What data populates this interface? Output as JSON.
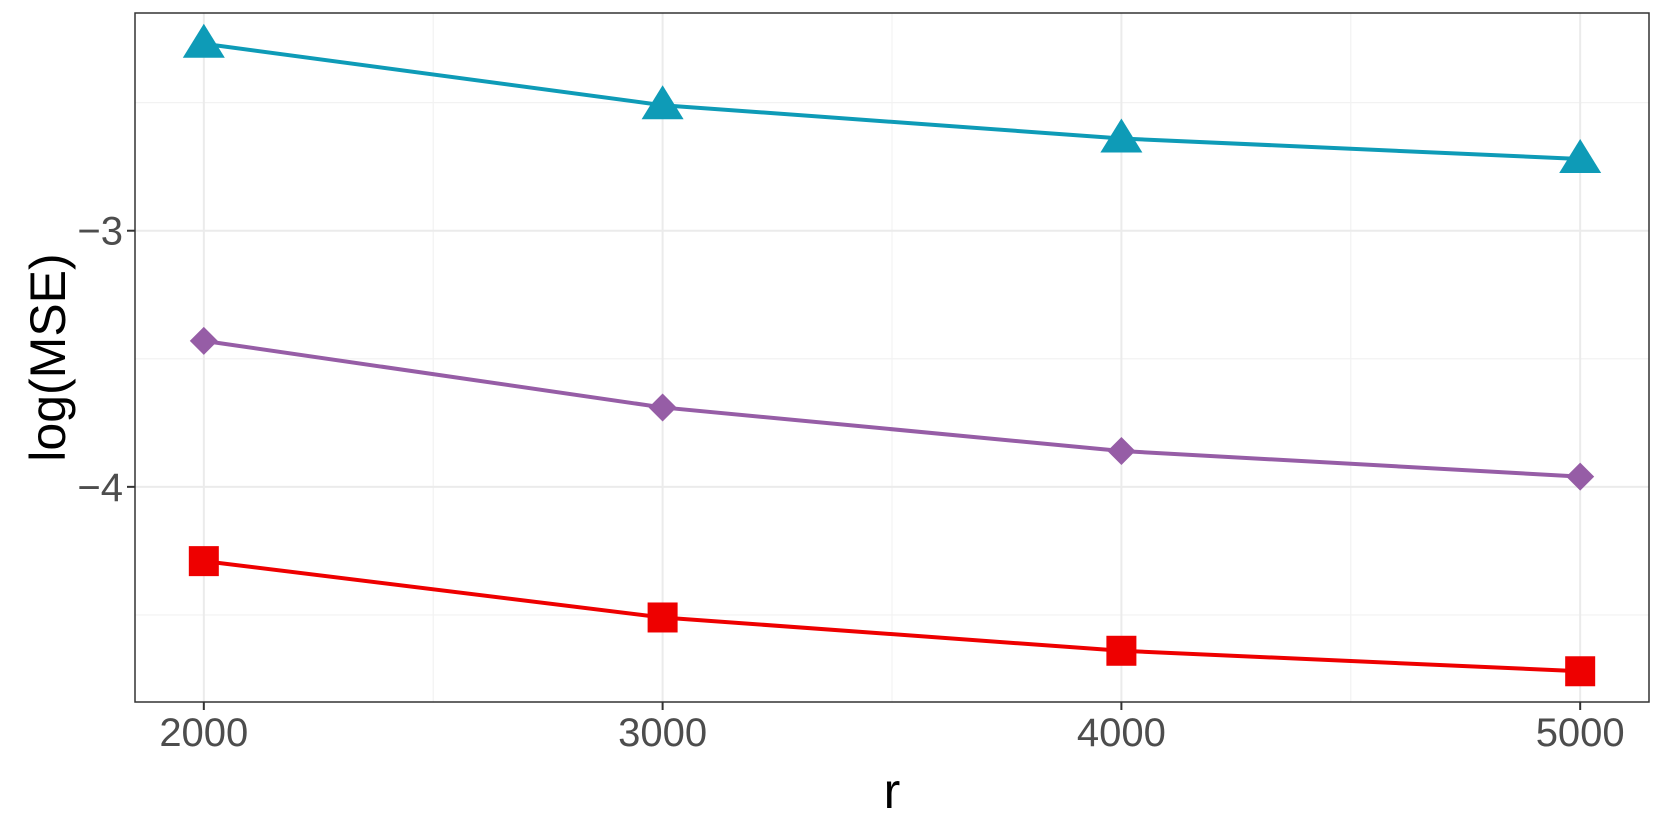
{
  "chart_data": {
    "type": "line",
    "title": "",
    "xlabel": "r",
    "ylabel": "log(MSE)",
    "x": [
      2000,
      3000,
      4000,
      5000
    ],
    "x_ticks": [
      2000,
      3000,
      4000,
      5000
    ],
    "x_tick_labels": [
      "2000",
      "3000",
      "4000",
      "5000"
    ],
    "y_ticks": [
      -3,
      -4
    ],
    "y_tick_labels": [
      "−3",
      "−4"
    ],
    "xlim": [
      1850,
      5150
    ],
    "ylim": [
      -4.84,
      -2.15
    ],
    "grid": true,
    "legend": "none",
    "series": [
      {
        "color": "#0e9bb7",
        "marker": "triangle",
        "values": [
          -2.27,
          -2.51,
          -2.64,
          -2.72
        ]
      },
      {
        "color": "#965da6",
        "marker": "diamond",
        "values": [
          -3.43,
          -3.69,
          -3.86,
          -3.96
        ]
      },
      {
        "color": "#ee0000",
        "marker": "square",
        "values": [
          -4.29,
          -4.51,
          -4.64,
          -4.72
        ]
      }
    ]
  }
}
